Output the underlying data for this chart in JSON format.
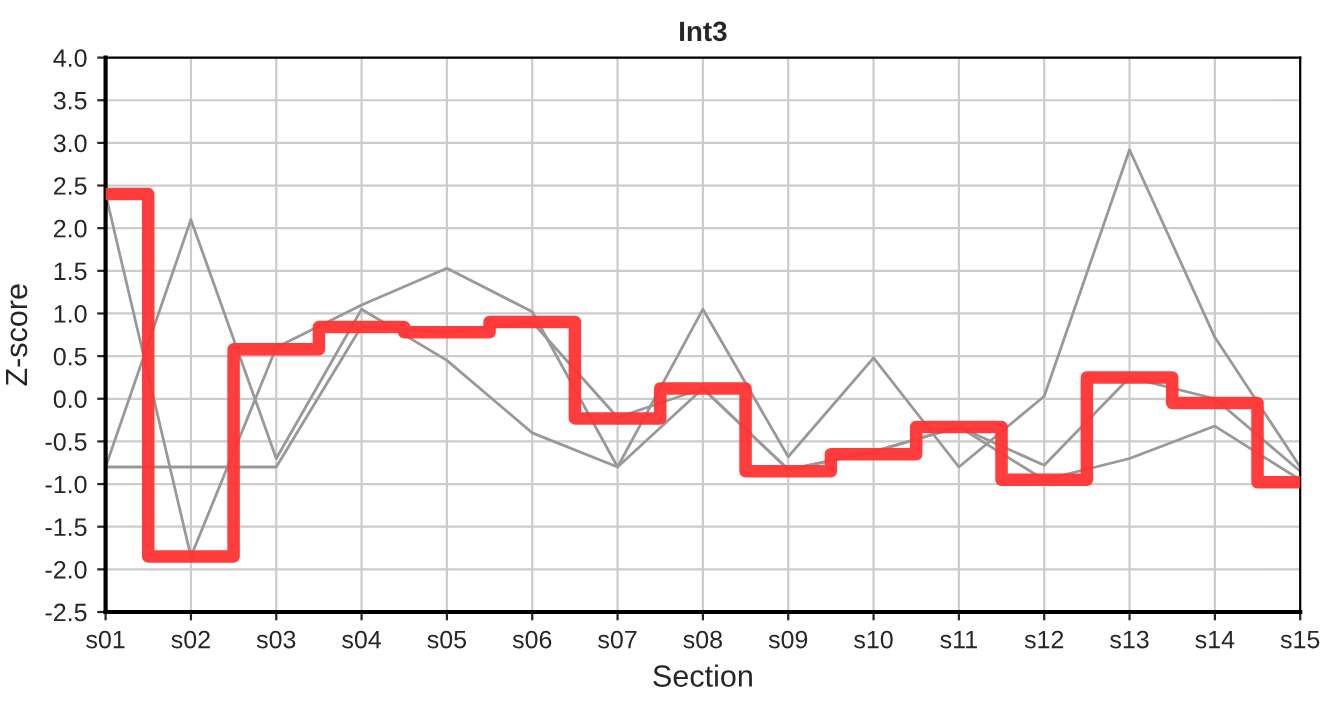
{
  "chart_data": {
    "type": "line",
    "title": "Int3",
    "xlabel": "Section",
    "ylabel": "Z-score",
    "categories": [
      "s01",
      "s02",
      "s03",
      "s04",
      "s05",
      "s06",
      "s07",
      "s08",
      "s09",
      "s10",
      "s11",
      "s12",
      "s13",
      "s14",
      "s15"
    ],
    "series": [
      {
        "color": "#999999",
        "values": [
          2.4,
          -1.85,
          0.6,
          1.1,
          1.53,
          1.02,
          -0.8,
          1.05,
          -0.68,
          0.48,
          -0.8,
          0.03,
          2.92,
          0.72,
          -0.8
        ]
      },
      {
        "color": "#999999",
        "values": [
          -0.8,
          2.1,
          -0.7,
          1.05,
          0.45,
          -0.4,
          -0.8,
          0.12,
          -0.83,
          -0.62,
          -0.33,
          -0.78,
          0.25,
          0.0,
          -0.85
        ]
      },
      {
        "color": "#999999",
        "values": [
          -0.8,
          -0.8,
          -0.8,
          0.85,
          0.78,
          0.9,
          -0.22,
          0.12,
          -0.83,
          -0.62,
          -0.33,
          -0.95,
          -0.7,
          -0.32,
          -0.95
        ]
      },
      {
        "type": "step",
        "color": "#ff3333",
        "values": [
          2.4,
          -1.85,
          0.58,
          0.84,
          0.78,
          0.9,
          -0.23,
          0.12,
          -0.85,
          -0.65,
          -0.33,
          -0.95,
          0.25,
          -0.05,
          -0.98
        ]
      }
    ],
    "ylim": [
      -2.5,
      4.0
    ],
    "yticks": [
      {
        "value": -2.5,
        "label": "-2.5"
      },
      {
        "value": -2.0,
        "label": "-2.0"
      },
      {
        "value": -1.5,
        "label": "-1.5"
      },
      {
        "value": -1.0,
        "label": "-1.0"
      },
      {
        "value": -0.5,
        "label": "-0.5"
      },
      {
        "value": 0.0,
        "label": "0.0"
      },
      {
        "value": 0.5,
        "label": "0.5"
      },
      {
        "value": 1.0,
        "label": "1.0"
      },
      {
        "value": 1.5,
        "label": "1.5"
      },
      {
        "value": 2.0,
        "label": "2.0"
      },
      {
        "value": 2.5,
        "label": "2.5"
      },
      {
        "value": 3.0,
        "label": "3.0"
      },
      {
        "value": 3.5,
        "label": "3.5"
      },
      {
        "value": 4.0,
        "label": "4.0"
      }
    ],
    "grid": true
  }
}
